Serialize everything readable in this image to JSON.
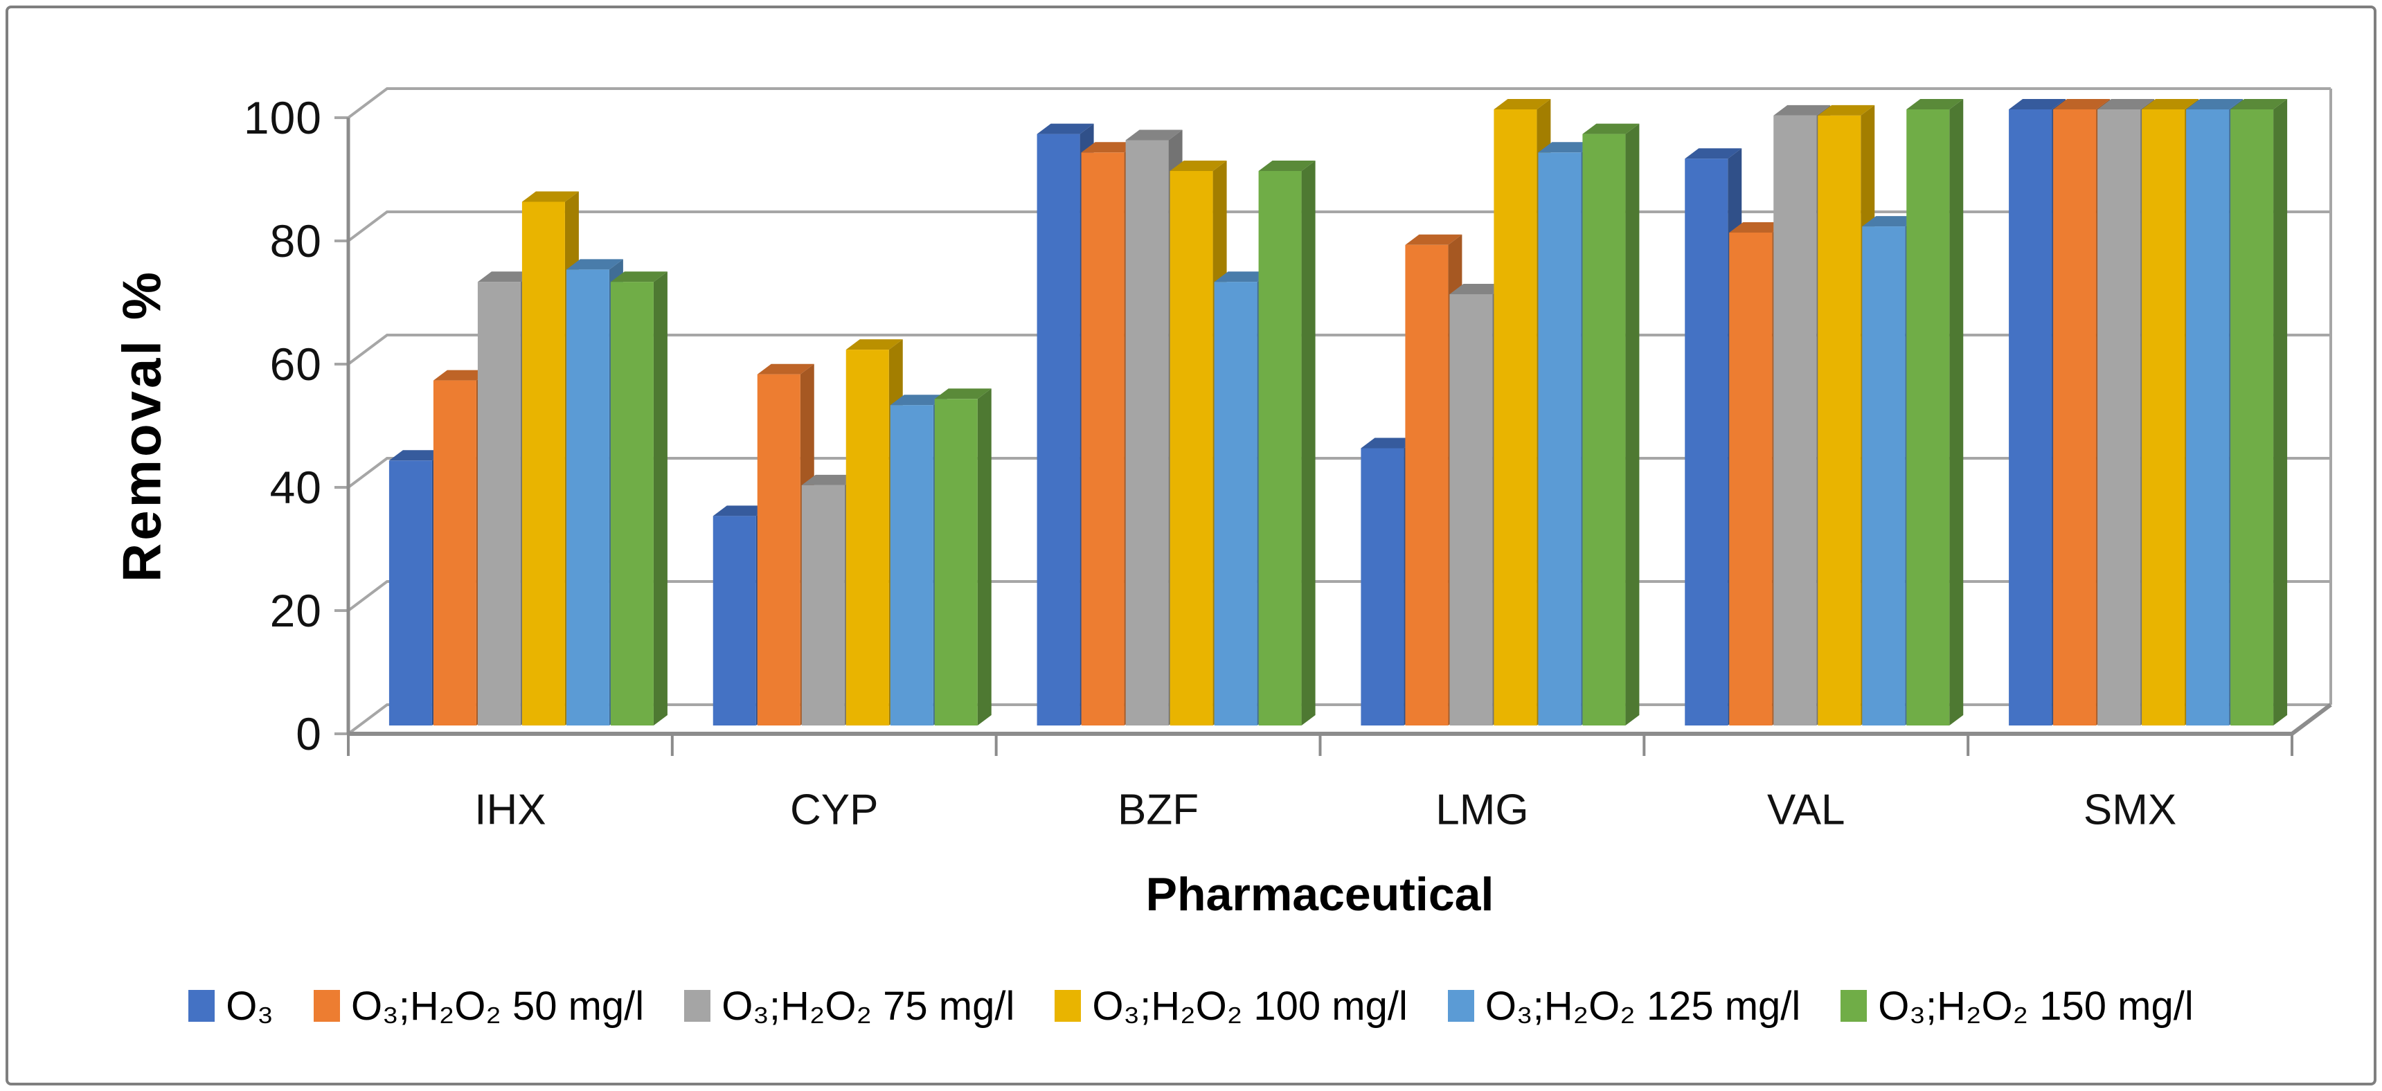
{
  "figure": {
    "y_axis_title": "Removal %",
    "x_axis_title": "Pharmaceutical"
  },
  "chart_data": {
    "type": "bar",
    "projection": "3d-clustered-column",
    "title": "",
    "xlabel": "Pharmaceutical",
    "ylabel": "Removal %",
    "ylim": [
      0,
      100
    ],
    "y_ticks": [
      0,
      20,
      40,
      60,
      80,
      100
    ],
    "grid": true,
    "legend_position": "bottom",
    "categories": [
      "IHX",
      "CYP",
      "BZF",
      "LMG",
      "VAL",
      "SMX"
    ],
    "series": [
      {
        "name": "O₃",
        "color": "#4472C4",
        "values": [
          43,
          34,
          96,
          45,
          92,
          100
        ]
      },
      {
        "name": "O₃;H₂O₂ 50 mg/l",
        "color": "#ED7D31",
        "values": [
          56,
          57,
          93,
          78,
          80,
          100
        ]
      },
      {
        "name": "O₃;H₂O₂ 75 mg/l",
        "color": "#A5A5A5",
        "values": [
          72,
          39,
          95,
          70,
          99,
          100
        ]
      },
      {
        "name": "O₃;H₂O₂ 100 mg/l",
        "color": "#E9B400",
        "values": [
          85,
          61,
          90,
          100,
          99,
          100
        ]
      },
      {
        "name": "O₃;H₂O₂ 125 mg/l",
        "color": "#5B9BD5",
        "values": [
          74,
          52,
          72,
          93,
          81,
          100
        ]
      },
      {
        "name": "O₃;H₂O₂ 150 mg/l",
        "color": "#70AD47",
        "values": [
          72,
          53,
          90,
          96,
          100,
          100
        ]
      }
    ],
    "frame_color": "#7F7F7F",
    "gridline_color": "#A6A6A6",
    "axis_line_color": "#8C8C8C"
  }
}
